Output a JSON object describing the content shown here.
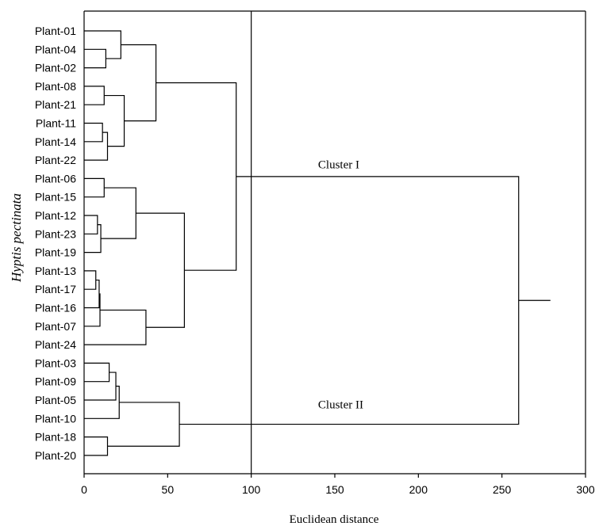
{
  "chart_data": {
    "type": "dendrogram",
    "xlabel": "Euclidean distance",
    "ylabel": "Hyptis pectinata",
    "xlim": [
      0,
      300
    ],
    "xticks": [
      0,
      50,
      100,
      150,
      200,
      250,
      300
    ],
    "cut_line": 100,
    "root_stub": 279,
    "leaves": [
      "Plant-01",
      "Plant-04",
      "Plant-02",
      "Plant-08",
      "Plant-21",
      "Plant-11",
      "Plant-14",
      "Plant-22",
      "Plant-06",
      "Plant-15",
      "Plant-12",
      "Plant-23",
      "Plant-19",
      "Plant-13",
      "Plant-17",
      "Plant-16",
      "Plant-07",
      "Plant-24",
      "Plant-03",
      "Plant-09",
      "Plant-05",
      "Plant-10",
      "Plant-18",
      "Plant-20"
    ],
    "merges": [
      {
        "a": "Plant-04",
        "b": "Plant-02",
        "h": 13
      },
      {
        "a": "Plant-01",
        "b": 0,
        "h": 22
      },
      {
        "a": "Plant-08",
        "b": "Plant-21",
        "h": 12
      },
      {
        "a": "Plant-11",
        "b": "Plant-14",
        "h": 11
      },
      {
        "a": 3,
        "b": "Plant-22",
        "h": 14
      },
      {
        "a": 2,
        "b": 4,
        "h": 24
      },
      {
        "a": 1,
        "b": 5,
        "h": 43
      },
      {
        "a": "Plant-06",
        "b": "Plant-15",
        "h": 12
      },
      {
        "a": "Plant-12",
        "b": "Plant-23",
        "h": 8
      },
      {
        "a": 8,
        "b": "Plant-19",
        "h": 10
      },
      {
        "a": 7,
        "b": 9,
        "h": 31
      },
      {
        "a": "Plant-13",
        "b": "Plant-17",
        "h": 7
      },
      {
        "a": 11,
        "b": "Plant-16",
        "h": 9
      },
      {
        "a": 12,
        "b": "Plant-07",
        "h": 9.5
      },
      {
        "a": 13,
        "b": "Plant-24",
        "h": 37
      },
      {
        "a": 10,
        "b": 14,
        "h": 60
      },
      {
        "a": 6,
        "b": 15,
        "h": 91
      },
      {
        "a": "Plant-03",
        "b": "Plant-09",
        "h": 15
      },
      {
        "a": 17,
        "b": "Plant-05",
        "h": 19
      },
      {
        "a": 18,
        "b": "Plant-10",
        "h": 21
      },
      {
        "a": "Plant-18",
        "b": "Plant-20",
        "h": 14
      },
      {
        "a": 19,
        "b": 20,
        "h": 57
      },
      {
        "a": 16,
        "b": 21,
        "h": 260
      }
    ],
    "annotations": [
      {
        "text": "Cluster I",
        "x": 140,
        "leaf": "Plant-06"
      },
      {
        "text": "Cluster II",
        "x": 140,
        "leaf": "Plant-10"
      }
    ]
  }
}
